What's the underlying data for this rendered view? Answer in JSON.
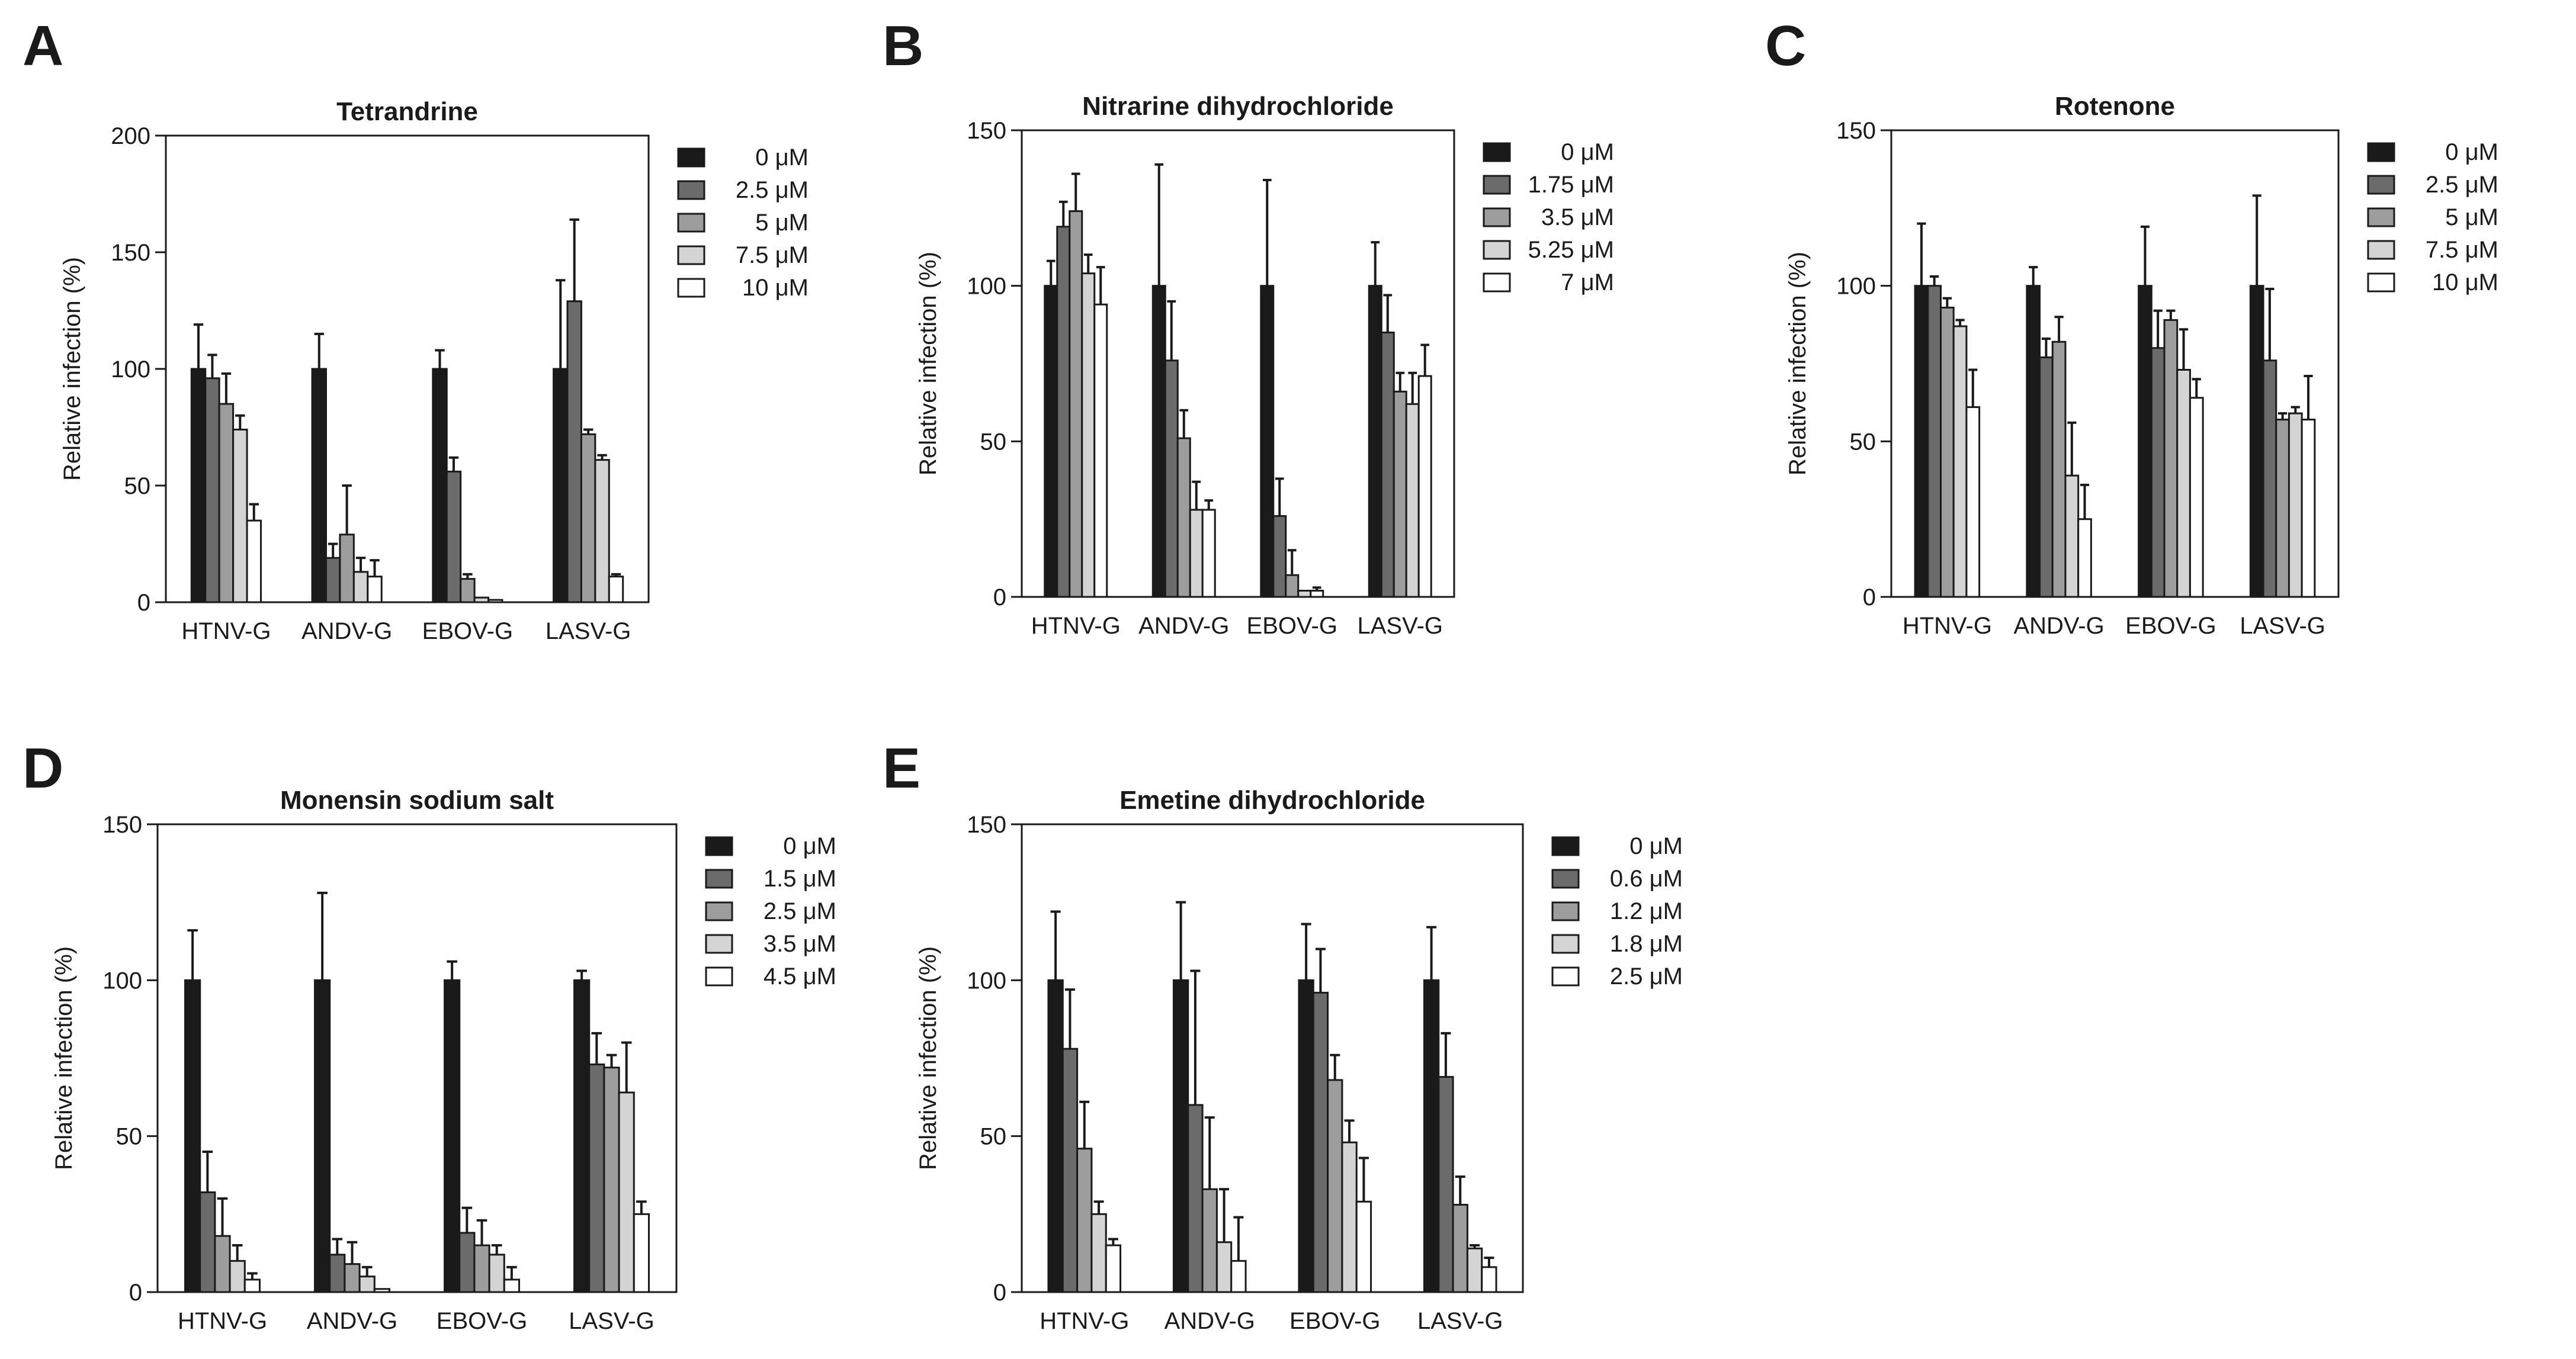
{
  "colors": [
    "#1a1a1a",
    "#6b6b6b",
    "#9d9d9d",
    "#d4d4d4",
    "#ffffff"
  ],
  "chart_data": [
    {
      "panel": "A",
      "type": "bar",
      "title": "Tetrandrine",
      "ylabel": "Relative infection (%)",
      "xlabel": "",
      "ylim": [
        0,
        200
      ],
      "yticks": [
        "0",
        "50",
        "100",
        "150",
        "200"
      ],
      "categories": [
        "HTNV-G",
        "ANDV-G",
        "EBOV-G",
        "LASV-G"
      ],
      "legend_position": "right",
      "series": [
        {
          "name": "0 μM",
          "values": [
            100,
            100,
            100,
            100
          ],
          "errors": [
            19,
            15,
            8,
            38
          ]
        },
        {
          "name": "2.5 μM",
          "values": [
            96,
            19,
            56,
            129
          ],
          "errors": [
            10,
            6,
            6,
            35
          ]
        },
        {
          "name": "5 μM",
          "values": [
            85,
            29,
            10,
            72
          ],
          "errors": [
            13,
            21,
            2,
            2
          ]
        },
        {
          "name": "7.5 μM",
          "values": [
            74,
            13,
            2,
            61
          ],
          "errors": [
            6,
            6,
            0,
            2
          ]
        },
        {
          "name": "10 μM",
          "values": [
            35,
            11,
            1,
            11
          ],
          "errors": [
            7,
            7,
            0,
            1
          ]
        }
      ]
    },
    {
      "panel": "B",
      "type": "bar",
      "title": "Nitrarine dihydrochloride",
      "ylabel": "Relative infection (%)",
      "xlabel": "",
      "ylim": [
        0,
        150
      ],
      "yticks": [
        "0",
        "50",
        "100",
        "150"
      ],
      "categories": [
        "HTNV-G",
        "ANDV-G",
        "EBOV-G",
        "LASV-G"
      ],
      "legend_position": "right",
      "series": [
        {
          "name": "0 μM",
          "values": [
            100,
            100,
            100,
            100
          ],
          "errors": [
            8,
            39,
            34,
            14
          ]
        },
        {
          "name": "1.75 μM",
          "values": [
            119,
            76,
            26,
            85
          ],
          "errors": [
            8,
            19,
            12,
            12
          ]
        },
        {
          "name": "3.5 μM",
          "values": [
            124,
            51,
            7,
            66
          ],
          "errors": [
            12,
            9,
            8,
            6
          ]
        },
        {
          "name": "5.25 μM",
          "values": [
            104,
            28,
            2,
            62
          ],
          "errors": [
            6,
            9,
            0,
            10
          ]
        },
        {
          "name": "7 μM",
          "values": [
            94,
            28,
            2,
            71
          ],
          "errors": [
            12,
            3,
            1,
            10
          ]
        }
      ]
    },
    {
      "panel": "C",
      "type": "bar",
      "title": "Rotenone",
      "ylabel": "Relative infection (%)",
      "xlabel": "",
      "ylim": [
        0,
        150
      ],
      "yticks": [
        "0",
        "50",
        "100",
        "150"
      ],
      "categories": [
        "HTNV-G",
        "ANDV-G",
        "EBOV-G",
        "LASV-G"
      ],
      "legend_position": "right",
      "series": [
        {
          "name": "0 μM",
          "values": [
            100,
            100,
            100,
            100
          ],
          "errors": [
            20,
            6,
            19,
            29
          ]
        },
        {
          "name": "2.5 μM",
          "values": [
            100,
            77,
            80,
            76
          ],
          "errors": [
            3,
            6,
            12,
            23
          ]
        },
        {
          "name": "5 μM",
          "values": [
            93,
            82,
            89,
            57
          ],
          "errors": [
            3,
            8,
            3,
            2
          ]
        },
        {
          "name": "7.5 μM",
          "values": [
            87,
            39,
            73,
            59
          ],
          "errors": [
            2,
            17,
            13,
            2
          ]
        },
        {
          "name": "10 μM",
          "values": [
            61,
            25,
            64,
            57
          ],
          "errors": [
            12,
            11,
            6,
            14
          ]
        }
      ]
    },
    {
      "panel": "D",
      "type": "bar",
      "title": "Monensin sodium salt",
      "ylabel": "Relative infection (%)",
      "xlabel": "",
      "ylim": [
        0,
        150
      ],
      "yticks": [
        "0",
        "50",
        "100",
        "150"
      ],
      "categories": [
        "HTNV-G",
        "ANDV-G",
        "EBOV-G",
        "LASV-G"
      ],
      "legend_position": "right",
      "series": [
        {
          "name": "0 μM",
          "values": [
            100,
            100,
            100,
            100
          ],
          "errors": [
            16,
            28,
            6,
            3
          ]
        },
        {
          "name": "1.5 μM",
          "values": [
            32,
            12,
            19,
            73
          ],
          "errors": [
            13,
            5,
            8,
            10
          ]
        },
        {
          "name": "2.5 μM",
          "values": [
            18,
            9,
            15,
            72
          ],
          "errors": [
            12,
            7,
            8,
            4
          ]
        },
        {
          "name": "3.5 μM",
          "values": [
            10,
            5,
            12,
            64
          ],
          "errors": [
            5,
            3,
            3,
            16
          ]
        },
        {
          "name": "4.5 μM",
          "values": [
            4,
            1,
            4,
            25
          ],
          "errors": [
            2,
            0,
            4,
            4
          ]
        }
      ]
    },
    {
      "panel": "E",
      "type": "bar",
      "title": "Emetine dihydrochloride",
      "ylabel": "Relative infection (%)",
      "xlabel": "",
      "ylim": [
        0,
        150
      ],
      "yticks": [
        "0",
        "50",
        "100",
        "150"
      ],
      "categories": [
        "HTNV-G",
        "ANDV-G",
        "EBOV-G",
        "LASV-G"
      ],
      "legend_position": "right",
      "series": [
        {
          "name": "0 μM",
          "values": [
            100,
            100,
            100,
            100
          ],
          "errors": [
            22,
            25,
            18,
            17
          ]
        },
        {
          "name": "0.6 μM",
          "values": [
            78,
            60,
            96,
            69
          ],
          "errors": [
            19,
            43,
            14,
            14
          ]
        },
        {
          "name": "1.2 μM",
          "values": [
            46,
            33,
            68,
            28
          ],
          "errors": [
            15,
            23,
            8,
            9
          ]
        },
        {
          "name": "1.8 μM",
          "values": [
            25,
            16,
            48,
            14
          ],
          "errors": [
            4,
            17,
            7,
            1
          ]
        },
        {
          "name": "2.5 μM",
          "values": [
            15,
            10,
            29,
            8
          ],
          "errors": [
            2,
            14,
            14,
            3
          ]
        }
      ]
    }
  ]
}
